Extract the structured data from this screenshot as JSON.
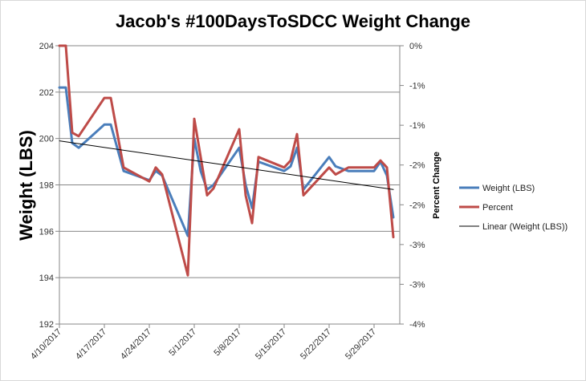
{
  "chart_data": {
    "type": "line",
    "title": "Jacob's #100DaysToSDCC Weight Change",
    "ylabel": "Weight (LBS)",
    "ylabel_right": "Percent Change",
    "ylim": [
      192,
      204
    ],
    "yticks": [
      "192",
      "194",
      "196",
      "198",
      "200",
      "202",
      "204"
    ],
    "ylim_right": [
      -4,
      0
    ],
    "yticks_right": [
      "-4%",
      "-3%",
      "-3%",
      "-2%",
      "-2%",
      "-1%",
      "-1%",
      "0%"
    ],
    "xlim": [
      "2017-04-10",
      "2017-06-02"
    ],
    "xticks": [
      "4/10/2017",
      "4/17/2017",
      "4/24/2017",
      "5/1/2017",
      "5/8/2017",
      "5/15/2017",
      "5/22/2017",
      "5/29/2017"
    ],
    "grid": true,
    "legend_position": "right",
    "series": [
      {
        "name": "Weight (LBS)",
        "axis": "left",
        "color": "#4a7ebb",
        "points": [
          [
            "2017-04-10",
            202.2
          ],
          [
            "2017-04-11",
            202.2
          ],
          [
            "2017-04-12",
            199.8
          ],
          [
            "2017-04-13",
            199.6
          ],
          [
            "2017-04-17",
            200.6
          ],
          [
            "2017-04-18",
            200.6
          ],
          [
            "2017-04-20",
            198.6
          ],
          [
            "2017-04-24",
            198.2
          ],
          [
            "2017-04-25",
            198.6
          ],
          [
            "2017-04-26",
            198.4
          ],
          [
            "2017-04-30",
            195.8
          ],
          [
            "2017-05-01",
            200.0
          ],
          [
            "2017-05-02",
            198.6
          ],
          [
            "2017-05-03",
            197.8
          ],
          [
            "2017-05-04",
            198.0
          ],
          [
            "2017-05-08",
            199.6
          ],
          [
            "2017-05-09",
            198.0
          ],
          [
            "2017-05-10",
            197.0
          ],
          [
            "2017-05-11",
            199.0
          ],
          [
            "2017-05-15",
            198.6
          ],
          [
            "2017-05-16",
            198.8
          ],
          [
            "2017-05-17",
            199.6
          ],
          [
            "2017-05-18",
            197.8
          ],
          [
            "2017-05-22",
            199.2
          ],
          [
            "2017-05-23",
            198.8
          ],
          [
            "2017-05-25",
            198.6
          ],
          [
            "2017-05-29",
            198.6
          ],
          [
            "2017-05-30",
            199.0
          ],
          [
            "2017-05-31",
            198.4
          ],
          [
            "2017-06-01",
            196.6
          ]
        ]
      },
      {
        "name": "Percent",
        "axis": "right",
        "color": "#be4b48",
        "points": [
          [
            "2017-04-10",
            0.0
          ],
          [
            "2017-04-11",
            0.0
          ],
          [
            "2017-04-12",
            -1.25
          ],
          [
            "2017-04-13",
            -1.3
          ],
          [
            "2017-04-17",
            -0.75
          ],
          [
            "2017-04-18",
            -0.75
          ],
          [
            "2017-04-20",
            -1.75
          ],
          [
            "2017-04-24",
            -1.95
          ],
          [
            "2017-04-25",
            -1.75
          ],
          [
            "2017-04-26",
            -1.85
          ],
          [
            "2017-04-30",
            -3.3
          ],
          [
            "2017-05-01",
            -1.05
          ],
          [
            "2017-05-02",
            -1.6
          ],
          [
            "2017-05-03",
            -2.15
          ],
          [
            "2017-05-04",
            -2.05
          ],
          [
            "2017-05-08",
            -1.2
          ],
          [
            "2017-05-09",
            -2.15
          ],
          [
            "2017-05-10",
            -2.55
          ],
          [
            "2017-05-11",
            -1.6
          ],
          [
            "2017-05-15",
            -1.75
          ],
          [
            "2017-05-16",
            -1.65
          ],
          [
            "2017-05-17",
            -1.27
          ],
          [
            "2017-05-18",
            -2.15
          ],
          [
            "2017-05-22",
            -1.75
          ],
          [
            "2017-05-23",
            -1.85
          ],
          [
            "2017-05-25",
            -1.75
          ],
          [
            "2017-05-29",
            -1.75
          ],
          [
            "2017-05-30",
            -1.65
          ],
          [
            "2017-05-31",
            -1.75
          ],
          [
            "2017-06-01",
            -2.75
          ]
        ]
      },
      {
        "name": "Linear (Weight (LBS))",
        "axis": "left",
        "color": "#000000",
        "points": [
          [
            "2017-04-10",
            199.9
          ],
          [
            "2017-06-01",
            197.8
          ]
        ]
      }
    ]
  }
}
